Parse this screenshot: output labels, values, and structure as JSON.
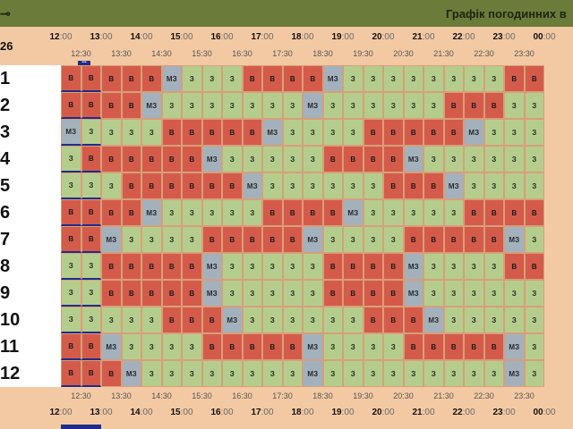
{
  "header": {
    "left_mark": "⊸",
    "title": "Графік погодинних в"
  },
  "day_label": "26",
  "hours": [
    "12",
    "13",
    "14",
    "15",
    "16",
    "17",
    "18",
    "19",
    "20",
    "21",
    "22",
    "23",
    "00"
  ],
  "hour_suffix": ":00",
  "half_hours": [
    "12:30",
    "13:30",
    "14:30",
    "15:30",
    "16:30",
    "17:30",
    "18:30",
    "19:30",
    "20:30",
    "21:30",
    "22:30",
    "23:30"
  ],
  "marker_dots": "•••",
  "codes": {
    "B": "В",
    "M": "МЗ",
    "Z": "З"
  },
  "groups": [
    {
      "label": "1",
      "cells": "BBBBBMZZZBBBBMZZZZZZZZBB"
    },
    {
      "label": "2",
      "cells": "BBBBMZZZZZZZMZZZZZZBBBZZ"
    },
    {
      "label": "3",
      "cells": "MZZZZBBBBBMZZZZBBBBBMZZZ"
    },
    {
      "label": "4",
      "cells": "ZBBBBBBMZZZZZBBBBMZZZZZZ"
    },
    {
      "label": "5",
      "cells": "ZZZBBBBBBMZZZZZZBBBMZZZZ"
    },
    {
      "label": "6",
      "cells": "BBBBMZZZZZBBBBMZZZZZBBBB"
    },
    {
      "label": "7",
      "cells": "BBMZZZZBBBBBMZZZZBBBBBMZ"
    },
    {
      "label": "8",
      "cells": "ZZBBBBBMZZZZZBBBBMZZZZBB"
    },
    {
      "label": "9",
      "cells": "ZZBBBBBMZZZZZBBBBMZZZZZZ"
    },
    {
      "label": "10",
      "cells": "ZZZZZBBBMZZZZZZBBBMZZZZZ"
    },
    {
      "label": "11",
      "cells": "BBMZZZZBBBBBMZZZZBBBBBMZ"
    },
    {
      "label": "12",
      "cells": "BBBMZZZZZZZZMZZZZZZZZZMZ"
    }
  ],
  "legend": {
    "on": "#b5cd8c",
    "off": "#d45b4a",
    "maybe": "#a3b1bd",
    "current_marker": "#1f2c8a"
  }
}
